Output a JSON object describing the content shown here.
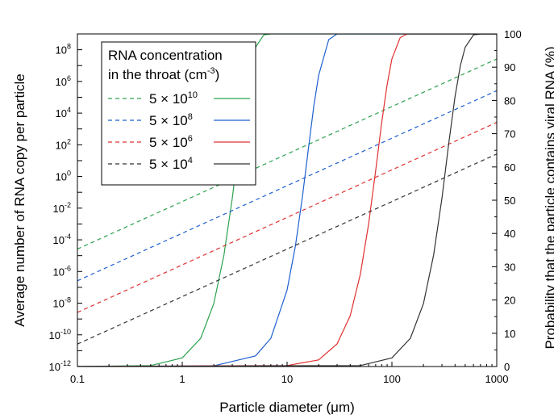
{
  "chart_data": {
    "type": "line",
    "xlabel": "Particle diameter (μm)",
    "ylabel_left": "Average number of RNA copy per particle",
    "ylabel_right": "Probability that the particle contains viral RNA (%)",
    "x_scale": "log",
    "y_left_scale": "log",
    "xlim": [
      0.1,
      1000
    ],
    "ylim_left": [
      1e-12,
      1000000000.0
    ],
    "ylim_right": [
      0,
      100
    ],
    "x_ticks": [
      0.1,
      1,
      10,
      100,
      1000
    ],
    "x_tick_labels": [
      "0.1",
      "1",
      "10",
      "100",
      "1000"
    ],
    "y_left_ticks": [
      {
        "base": "10",
        "exp": "-12"
      },
      {
        "base": "10",
        "exp": "-10"
      },
      {
        "base": "10",
        "exp": "-8"
      },
      {
        "base": "10",
        "exp": "-6"
      },
      {
        "base": "10",
        "exp": "-4"
      },
      {
        "base": "10",
        "exp": "-2"
      },
      {
        "base": "10",
        "exp": "0"
      },
      {
        "base": "10",
        "exp": "2"
      },
      {
        "base": "10",
        "exp": "4"
      },
      {
        "base": "10",
        "exp": "6"
      },
      {
        "base": "10",
        "exp": "8"
      }
    ],
    "y_right_ticks": [
      "0",
      "10",
      "20",
      "30",
      "40",
      "50",
      "60",
      "70",
      "80",
      "90",
      "100"
    ],
    "legend": {
      "title_line1": "RNA concentration",
      "title_line2": "in the throat (cm",
      "title_sup": "-3",
      "title_end": ")",
      "placement": "top-left",
      "entries": [
        {
          "base": "5 × 10",
          "exp": "10",
          "color": "#2ca24f"
        },
        {
          "base": "5 × 10",
          "exp": "8",
          "color": "#1f5fd0"
        },
        {
          "base": "5 × 10",
          "exp": "6",
          "color": "#e03030"
        },
        {
          "base": "5 × 10",
          "exp": "4",
          "color": "#333333"
        }
      ]
    },
    "series": [
      {
        "concentration_cm3": 50000000000.0,
        "color": "#2ca24f",
        "copies_per_particle": {
          "style": "dashed",
          "axis": "left",
          "x": [
            0.1,
            1,
            10,
            100,
            1000
          ],
          "y": [
            2.6e-05,
            0.026,
            26.0,
            26000.0,
            26000000.0
          ]
        },
        "probability_percent": {
          "style": "solid",
          "axis": "right",
          "x": [
            0.1,
            0.5,
            1,
            1.5,
            2,
            2.5,
            3,
            3.5,
            4,
            5,
            6,
            7,
            1000
          ],
          "y": [
            0,
            0.3,
            2.6,
            8.5,
            18.9,
            33.5,
            50.5,
            67.5,
            81.2,
            96,
            99.7,
            100,
            100
          ]
        }
      },
      {
        "concentration_cm3": 500000000.0,
        "color": "#1f5fd0",
        "copies_per_particle": {
          "style": "dashed",
          "axis": "left",
          "x": [
            0.1,
            1,
            10,
            100,
            1000
          ],
          "y": [
            2.6e-07,
            0.00026,
            0.26,
            260.0,
            260000.0
          ]
        },
        "probability_percent": {
          "style": "solid",
          "axis": "right",
          "x": [
            0.1,
            2,
            5,
            7,
            10,
            12,
            14,
            16,
            18,
            20,
            25,
            30,
            1000
          ],
          "y": [
            0,
            0.2,
            3.2,
            8.5,
            23,
            36.2,
            51,
            65.6,
            78.4,
            87.5,
            98.3,
            100,
            100
          ]
        }
      },
      {
        "concentration_cm3": 5000000.0,
        "color": "#e03030",
        "copies_per_particle": {
          "style": "dashed",
          "axis": "left",
          "x": [
            0.1,
            1,
            10,
            100,
            1000
          ],
          "y": [
            2.6e-09,
            2.6e-06,
            0.0026,
            2.6,
            2600.0
          ]
        },
        "probability_percent": {
          "style": "solid",
          "axis": "right",
          "x": [
            0.1,
            10,
            20,
            30,
            40,
            50,
            60,
            70,
            80,
            90,
            100,
            120,
            140,
            1000
          ],
          "y": [
            0,
            0.3,
            2,
            6.8,
            15.3,
            27.8,
            43,
            59,
            73.5,
            84.8,
            92.5,
            98.9,
            100,
            100
          ]
        }
      },
      {
        "concentration_cm3": 50000.0,
        "color": "#333333",
        "copies_per_particle": {
          "style": "dashed",
          "axis": "left",
          "x": [
            0.1,
            1,
            10,
            100,
            1000
          ],
          "y": [
            2.6e-11,
            2.6e-08,
            2.6e-05,
            0.026,
            26.0
          ]
        },
        "probability_percent": {
          "style": "solid",
          "axis": "right",
          "x": [
            0.1,
            50,
            100,
            150,
            200,
            250,
            300,
            350,
            400,
            450,
            500,
            600,
            700,
            1000
          ],
          "y": [
            0,
            0.3,
            2.6,
            8.5,
            18.9,
            33.5,
            50.5,
            67.5,
            81.2,
            90.5,
            96,
            99.7,
            100,
            100
          ]
        }
      }
    ]
  }
}
